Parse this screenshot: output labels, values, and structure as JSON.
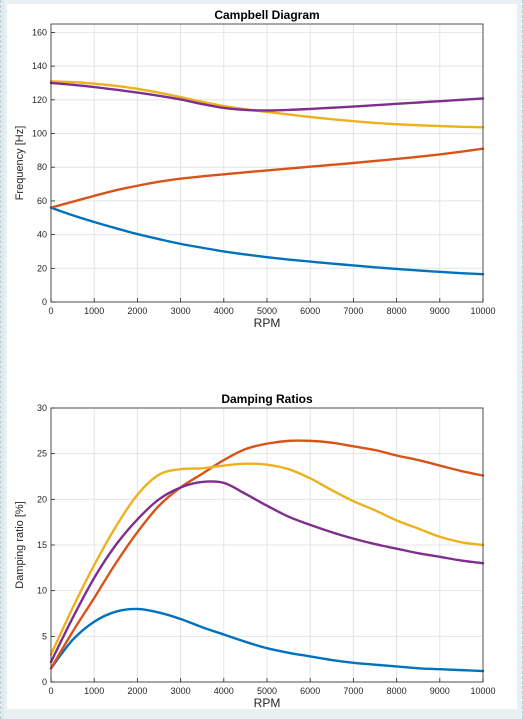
{
  "chart_data": [
    {
      "type": "line",
      "title": "Campbell Diagram",
      "xlabel": "RPM",
      "ylabel": "Frequency [Hz]",
      "xlim": [
        0,
        10000
      ],
      "ylim": [
        0,
        165
      ],
      "xticks": [
        0,
        1000,
        2000,
        3000,
        4000,
        5000,
        6000,
        7000,
        8000,
        9000,
        10000
      ],
      "yticks": [
        0,
        20,
        40,
        60,
        80,
        100,
        120,
        140,
        160
      ],
      "grid": true,
      "x": [
        0,
        500,
        1000,
        1500,
        2000,
        2500,
        3000,
        3500,
        4000,
        4500,
        5000,
        5500,
        6000,
        6500,
        7000,
        7500,
        8000,
        8500,
        9000,
        9500,
        10000
      ],
      "series": [
        {
          "color": "#0072BD",
          "values": [
            56,
            51.5,
            47.5,
            43.8,
            40.3,
            37.3,
            34.5,
            32.2,
            30,
            28.2,
            26.6,
            25.2,
            24,
            22.8,
            21.7,
            20.6,
            19.6,
            18.7,
            17.9,
            17.1,
            16.5
          ]
        },
        {
          "color": "#D95319",
          "values": [
            56,
            59.5,
            63,
            66.3,
            69,
            71.4,
            73.2,
            74.6,
            75.8,
            77,
            78.1,
            79.2,
            80.3,
            81.4,
            82.5,
            83.7,
            84.9,
            86.2,
            87.6,
            89.2,
            91
          ]
        },
        {
          "color": "#EDB120",
          "values": [
            131,
            130.5,
            129.6,
            128.3,
            126.5,
            124.2,
            121.6,
            118.8,
            116.3,
            114.4,
            112.8,
            111.3,
            109.8,
            108.5,
            107.3,
            106.3,
            105.5,
            104.9,
            104.4,
            104,
            103.7
          ]
        },
        {
          "color": "#7E2F8E",
          "values": [
            130,
            128.9,
            127.6,
            126,
            124.3,
            122.4,
            120.2,
            117.5,
            115.2,
            114,
            113.7,
            114,
            114.6,
            115.3,
            116,
            116.8,
            117.6,
            118.4,
            119.2,
            120,
            120.8
          ]
        }
      ]
    },
    {
      "type": "line",
      "title": "Damping Ratios",
      "xlabel": "RPM",
      "ylabel": "Damping ratio [%]",
      "xlim": [
        0,
        10000
      ],
      "ylim": [
        0,
        30
      ],
      "xticks": [
        0,
        1000,
        2000,
        3000,
        4000,
        5000,
        6000,
        7000,
        8000,
        9000,
        10000
      ],
      "yticks": [
        0,
        5,
        10,
        15,
        20,
        25,
        30
      ],
      "grid": true,
      "x": [
        0,
        500,
        1000,
        1500,
        2000,
        2500,
        3000,
        3500,
        4000,
        4500,
        5000,
        5500,
        6000,
        6500,
        7000,
        7500,
        8000,
        8500,
        9000,
        9500,
        10000
      ],
      "series": [
        {
          "color": "#0072BD",
          "values": [
            1.5,
            4.6,
            6.6,
            7.7,
            8,
            7.6,
            6.9,
            6,
            5.2,
            4.4,
            3.7,
            3.2,
            2.8,
            2.4,
            2.1,
            1.9,
            1.7,
            1.5,
            1.4,
            1.3,
            1.2
          ]
        },
        {
          "color": "#D95319",
          "values": [
            1.5,
            5.5,
            9.2,
            13,
            16.4,
            19.3,
            21.3,
            22.8,
            24.3,
            25.5,
            26.1,
            26.4,
            26.4,
            26.2,
            25.8,
            25.4,
            24.8,
            24.3,
            23.7,
            23.1,
            22.6
          ]
        },
        {
          "color": "#EDB120",
          "values": [
            3,
            8.1,
            12.8,
            17,
            20.5,
            22.7,
            23.3,
            23.4,
            23.7,
            23.9,
            23.8,
            23.3,
            22.3,
            21,
            19.8,
            18.8,
            17.7,
            16.8,
            15.9,
            15.3,
            15
          ]
        },
        {
          "color": "#7E2F8E",
          "values": [
            2.2,
            7,
            11.4,
            15,
            17.8,
            20,
            21.3,
            21.9,
            21.8,
            20.6,
            19.3,
            18.1,
            17.2,
            16.4,
            15.7,
            15.1,
            14.6,
            14.1,
            13.7,
            13.3,
            13
          ]
        }
      ]
    }
  ]
}
